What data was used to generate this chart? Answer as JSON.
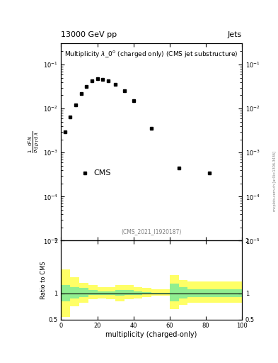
{
  "title": "13000 GeV pp",
  "title_right": "Jets",
  "plot_title": "Multiplicity $\\lambda\\_0^0$ (charged only) (CMS jet substructure)",
  "cms_label": "CMS",
  "ref_label": "(CMS_2021_I1920187)",
  "xlabel": "multiplicity (charged-only)",
  "ylabel_ratio": "Ratio to CMS",
  "data_x": [
    2,
    5,
    8,
    11,
    14,
    17,
    20,
    23,
    26,
    30,
    35,
    40,
    50,
    65,
    82
  ],
  "data_y": [
    0.003,
    0.0065,
    0.012,
    0.022,
    0.032,
    0.042,
    0.048,
    0.046,
    0.043,
    0.035,
    0.025,
    0.015,
    0.0035,
    0.00045,
    0.00035
  ],
  "ylim": [
    1e-05,
    0.3
  ],
  "xlim": [
    0,
    100
  ],
  "ratio_ylim": [
    0.5,
    2.0
  ],
  "ratio_band_yellow_x": [
    0,
    5,
    10,
    15,
    20,
    25,
    30,
    35,
    40,
    45,
    50,
    55,
    60,
    65,
    70,
    75,
    80,
    85,
    90,
    95,
    100
  ],
  "ratio_band_yellow_lo": [
    0.55,
    0.75,
    0.82,
    0.88,
    0.9,
    0.88,
    0.85,
    0.88,
    0.9,
    0.92,
    0.95,
    0.95,
    0.7,
    0.78,
    0.82,
    0.82,
    0.82,
    0.82,
    0.82,
    0.82,
    0.82
  ],
  "ratio_band_yellow_hi": [
    1.45,
    1.3,
    1.2,
    1.15,
    1.12,
    1.12,
    1.15,
    1.15,
    1.12,
    1.1,
    1.08,
    1.08,
    1.35,
    1.25,
    1.22,
    1.22,
    1.22,
    1.22,
    1.22,
    1.22,
    1.22
  ],
  "ratio_band_green_x": [
    0,
    5,
    10,
    15,
    20,
    25,
    30,
    35,
    40,
    45,
    50,
    55,
    60,
    65,
    70,
    75,
    80,
    85,
    90,
    95,
    100
  ],
  "ratio_band_green_lo": [
    0.85,
    0.9,
    0.92,
    0.96,
    0.97,
    0.96,
    0.95,
    0.96,
    0.97,
    0.98,
    0.99,
    0.99,
    0.85,
    0.9,
    0.93,
    0.93,
    0.93,
    0.93,
    0.93,
    0.93,
    0.93
  ],
  "ratio_band_green_hi": [
    1.15,
    1.12,
    1.1,
    1.06,
    1.04,
    1.04,
    1.06,
    1.06,
    1.04,
    1.02,
    1.01,
    1.01,
    1.18,
    1.12,
    1.08,
    1.08,
    1.08,
    1.08,
    1.08,
    1.08,
    1.08
  ],
  "marker_color": "#000000",
  "marker_style": "s",
  "marker_size": 3.5,
  "background_color": "#ffffff",
  "axis_label_fontsize": 7,
  "title_fontsize": 8,
  "tick_fontsize": 6,
  "ylabel_lines": [
    "mathrm d^2N",
    "mathrm d p_T mathrm d lambda"
  ],
  "side_text": "mcplots.cern.ch [arXiv:1306.3436]"
}
